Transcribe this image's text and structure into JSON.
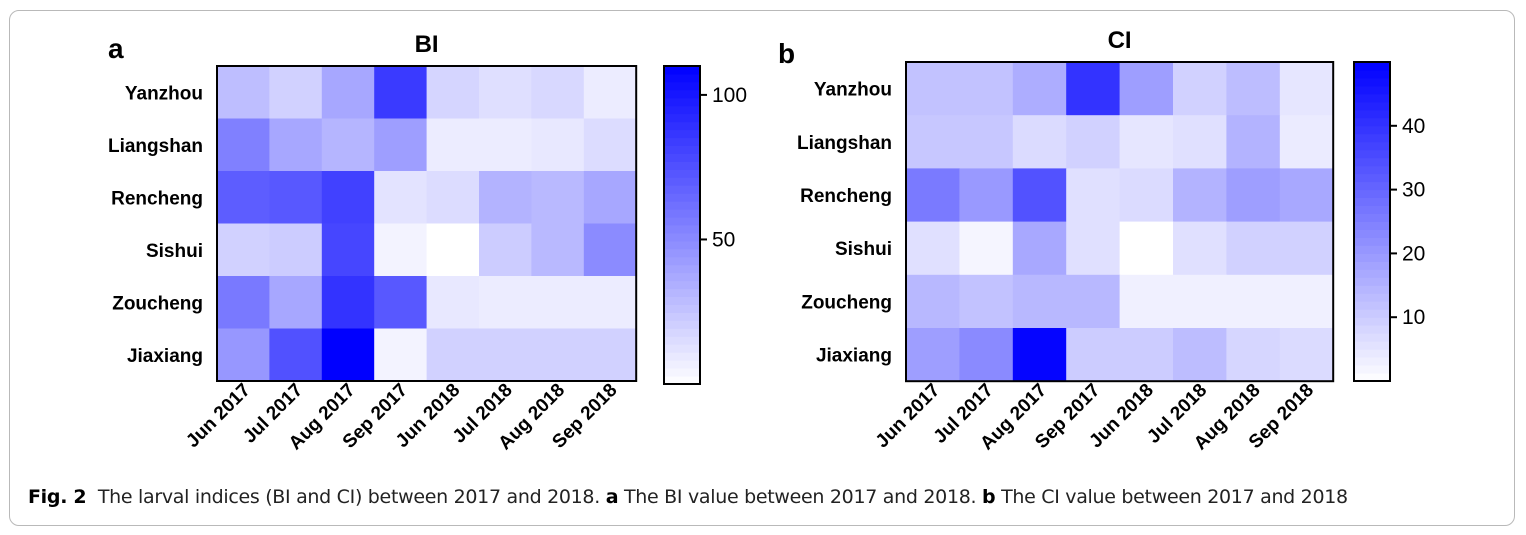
{
  "caption": {
    "fig_label": "Fig. 2",
    "text_1": "The larval indices (BI and CI) between 2017 and 2018.",
    "part_a_label": "a",
    "text_2": "The BI value between 2017 and 2018.",
    "part_b_label": "b",
    "text_3": "The CI value between 2017 and 2018"
  },
  "colors": {
    "low": "#ffffff",
    "high": "#0000ff",
    "border": "#000000"
  },
  "chart_data": [
    {
      "type": "heatmap",
      "panel": "a",
      "title": "BI",
      "rows": [
        "Yanzhou",
        "Liangshan",
        "Rencheng",
        "Sishui",
        "Zoucheng",
        "Jiaxiang"
      ],
      "columns": [
        "Jun 2017",
        "Jul 2017",
        "Aug 2017",
        "Sep 2017",
        "Jun 2018",
        "Jul 2018",
        "Aug 2018",
        "Sep 2018"
      ],
      "values": [
        [
          28,
          20,
          38,
          85,
          18,
          14,
          17,
          8
        ],
        [
          55,
          38,
          32,
          42,
          8,
          8,
          10,
          15
        ],
        [
          70,
          72,
          82,
          12,
          15,
          33,
          30,
          38
        ],
        [
          20,
          22,
          80,
          5,
          0,
          22,
          30,
          50
        ],
        [
          58,
          38,
          88,
          72,
          10,
          8,
          8,
          8
        ],
        [
          45,
          75,
          110,
          5,
          20,
          20,
          20,
          20
        ]
      ],
      "colorbar": {
        "min": 0,
        "max": 110,
        "ticks": [
          50,
          100
        ]
      }
    },
    {
      "type": "heatmap",
      "panel": "b",
      "title": "CI",
      "rows": [
        "Yanzhou",
        "Liangshan",
        "Rencheng",
        "Sishui",
        "Zoucheng",
        "Jiaxiang"
      ],
      "columns": [
        "Jun 2017",
        "Jul 2017",
        "Aug 2017",
        "Sep 2017",
        "Jun 2018",
        "Jul 2018",
        "Aug 2018",
        "Sep 2018"
      ],
      "values": [
        [
          12,
          12,
          16,
          40,
          19,
          9,
          13,
          5
        ],
        [
          11,
          11,
          7,
          9,
          5,
          6,
          15,
          4
        ],
        [
          26,
          20,
          34,
          6,
          7,
          15,
          19,
          17
        ],
        [
          6,
          2,
          17,
          6,
          0,
          6,
          9,
          9
        ],
        [
          14,
          12,
          14,
          14,
          3,
          3,
          3,
          3
        ],
        [
          19,
          23,
          49,
          10,
          10,
          13,
          8,
          7
        ]
      ],
      "colorbar": {
        "min": 0,
        "max": 50,
        "ticks": [
          10,
          20,
          30,
          40
        ]
      }
    }
  ]
}
